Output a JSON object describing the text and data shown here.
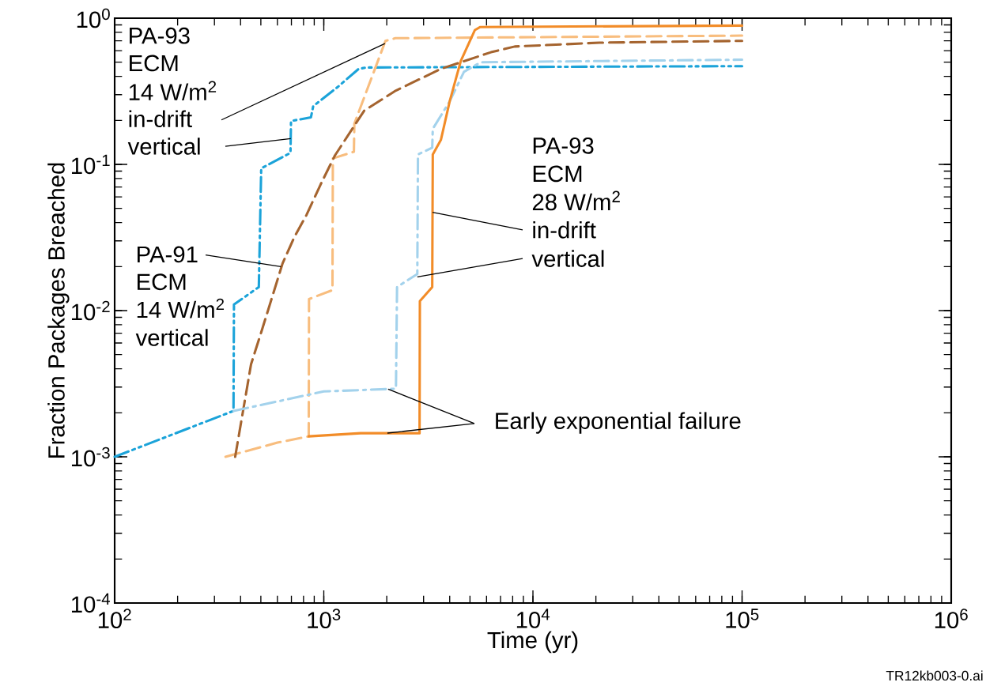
{
  "chart_data": {
    "type": "line",
    "xlabel": "Time (yr)",
    "ylabel": "Fraction Packages Breached",
    "log": "xy",
    "xlim": [
      100,
      1000000
    ],
    "ylim": [
      0.0001,
      1
    ],
    "xticks": [
      {
        "value": 100,
        "label": "10$^{2}$"
      },
      {
        "value": 1000,
        "label": "10$^{3}$"
      },
      {
        "value": 10000,
        "label": "10$^{4}$"
      },
      {
        "value": 100000,
        "label": "10$^{5}$"
      },
      {
        "value": 1000000,
        "label": "10$^{6}$"
      }
    ],
    "yticks": [
      {
        "value": 0.0001,
        "label": "10$^{-4}$"
      },
      {
        "value": 0.001,
        "label": "10$^{-3}$"
      },
      {
        "value": 0.01,
        "label": "10$^{-2}$"
      },
      {
        "value": 0.1,
        "label": "10$^{-1}$"
      },
      {
        "value": 1,
        "label": "10$^{0}$"
      }
    ],
    "grid": false,
    "series": [
      {
        "color": "#1ba3d9",
        "line_style": "dashdotdot",
        "x": [
          100,
          370,
          372,
          489,
          502,
          693,
          697,
          868,
          890,
          1170,
          1468,
          1600,
          100000
        ],
        "values": [
          0.001,
          0.00206,
          0.011,
          0.0145,
          0.094,
          0.12,
          0.198,
          0.21,
          0.25,
          0.34,
          0.45,
          0.46,
          0.47
        ]
      },
      {
        "color": "#f8bd7e",
        "line_style": "dashed",
        "x": [
          339,
          600,
          847,
          850,
          1100,
          1105,
          1393,
          1400,
          1972,
          2200,
          100000
        ],
        "values": [
          0.001,
          0.00125,
          0.00138,
          0.012,
          0.0138,
          0.11,
          0.122,
          0.19,
          0.7,
          0.73,
          0.76
        ]
      },
      {
        "color": "#a5642f",
        "line_style": "dashed",
        "x": [
          377,
          449,
          502,
          635,
          724,
          826,
          966,
          1130,
          1560,
          2213,
          3630,
          6300,
          8180,
          20800,
          100000
        ],
        "values": [
          0.001,
          0.0043,
          0.0071,
          0.021,
          0.032,
          0.045,
          0.073,
          0.115,
          0.233,
          0.32,
          0.45,
          0.585,
          0.64,
          0.68,
          0.7
        ]
      },
      {
        "color": "#a3d2ec",
        "line_style": "dashdot",
        "x": [
          370,
          1000,
          2213,
          2240,
          2800,
          2820,
          3300,
          3320,
          4000,
          4680,
          5630,
          100000
        ],
        "values": [
          0.00206,
          0.0028,
          0.00292,
          0.0145,
          0.0178,
          0.117,
          0.13,
          0.175,
          0.27,
          0.43,
          0.5,
          0.52
        ]
      },
      {
        "color": "#f28c28",
        "line_style": "solid",
        "x": [
          847,
          1500,
          2870,
          2880,
          3300,
          3320,
          3630,
          4000,
          4520,
          5280,
          5600,
          100000
        ],
        "values": [
          0.00138,
          0.00145,
          0.00145,
          0.0116,
          0.0145,
          0.117,
          0.147,
          0.27,
          0.51,
          0.83,
          0.87,
          0.89
        ]
      }
    ],
    "annotations": [
      "PA-93",
      "ECM",
      "14 W/m$^{2}$",
      {
        "text": "in-drift",
        "x": 1960,
        "y": 0.67
      },
      {
        "text": "vertical",
        "x": 695,
        "y": 0.15
      },
      {
        "text": "PA-91",
        "x": 624,
        "y": 0.02
      },
      "ECM",
      "14 W/m$^{2}$",
      "vertical",
      "PA-93",
      "ECM",
      "28 W/m$^{2}$",
      {
        "text": "in-drift",
        "x": 3310,
        "y": 0.047
      },
      {
        "text": "vertical",
        "x": 2800,
        "y": 0.017
      },
      {
        "text": "Early exponential failure",
        "x": 2030,
        "y": 0.0029
      },
      "TR12kb003-0.ai"
    ]
  }
}
